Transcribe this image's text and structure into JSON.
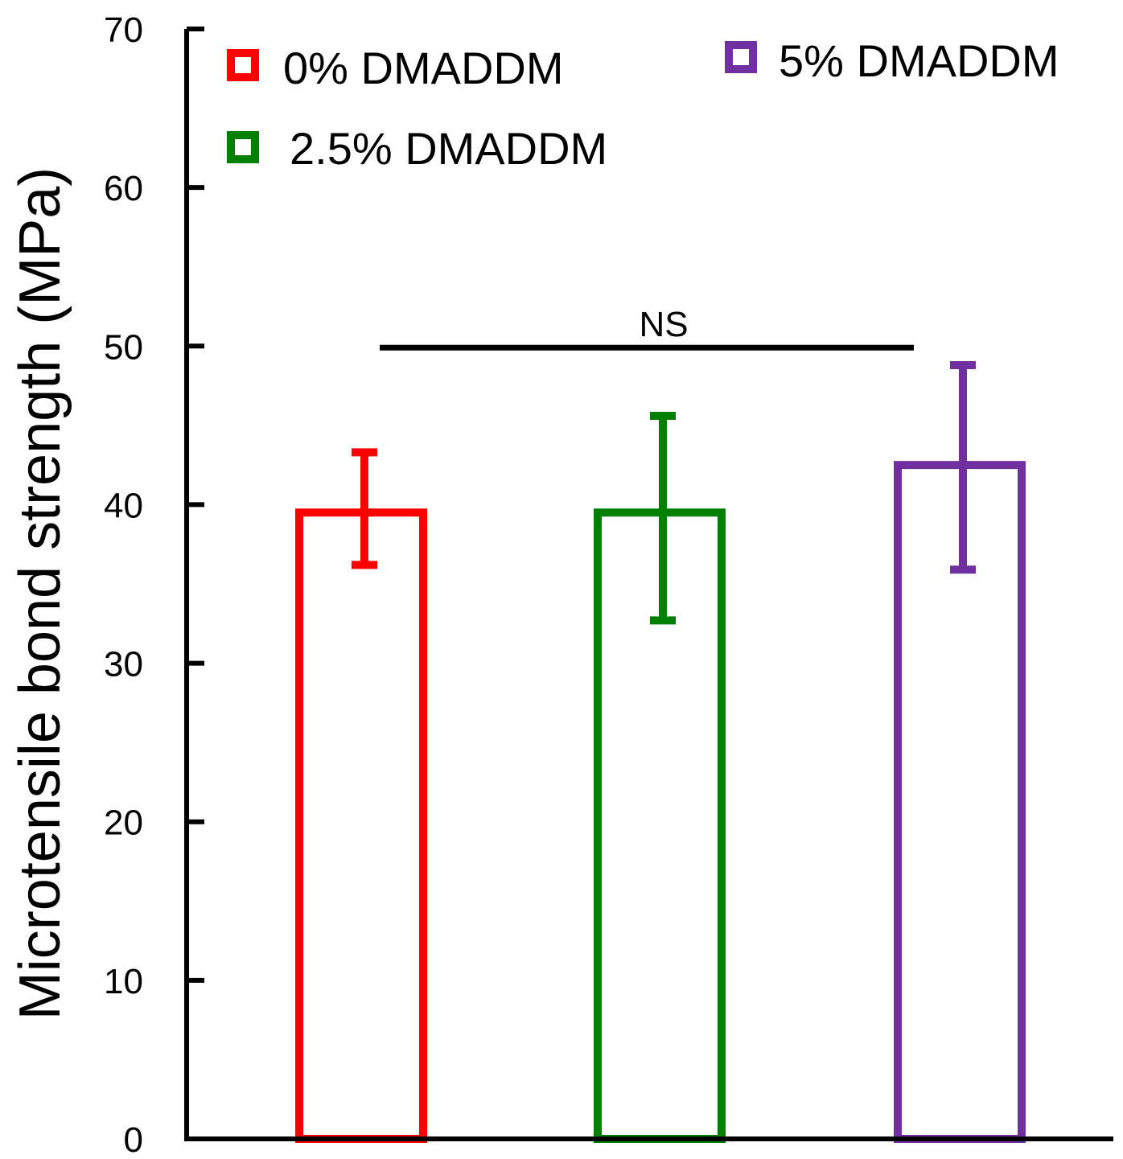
{
  "chart_data": {
    "type": "bar",
    "title": "",
    "xlabel": "",
    "ylabel": "Microtensile bond strength (MPa)",
    "ylim": [
      0,
      70
    ],
    "yticks": [
      0,
      10,
      20,
      30,
      40,
      50,
      60,
      70
    ],
    "grid": false,
    "legend_position": "top",
    "series": [
      {
        "name": "0% DMADDM",
        "value": 39.5,
        "error_low": 36.2,
        "error_high": 43.3,
        "color": "#ff0000"
      },
      {
        "name": "2.5% DMADDM",
        "value": 39.5,
        "error_low": 32.7,
        "error_high": 45.6,
        "color": "#008000"
      },
      {
        "name": "5% DMADDM",
        "value": 42.5,
        "error_low": 35.9,
        "error_high": 48.8,
        "color": "#7030a0"
      }
    ],
    "annotations": [
      {
        "text": "NS",
        "type": "significance_bracket",
        "y_value": 50,
        "spans": [
          "0% DMADDM",
          "5% DMADDM"
        ]
      }
    ]
  }
}
